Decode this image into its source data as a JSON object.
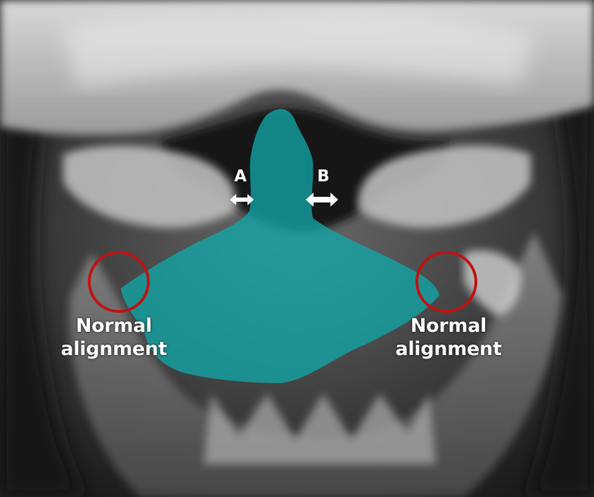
{
  "figure": {
    "subject": "open-mouth odontoid x-ray view",
    "overlay_color": "#12a6a6",
    "circle_color": "#c01212",
    "arrow_color": "#ffffff"
  },
  "labels": {
    "gap_a": "A",
    "gap_b": "B",
    "left_alignment": {
      "line1": "Normal",
      "line2": "alignment"
    },
    "right_alignment": {
      "line1": "Normal",
      "line2": "alignment"
    }
  }
}
